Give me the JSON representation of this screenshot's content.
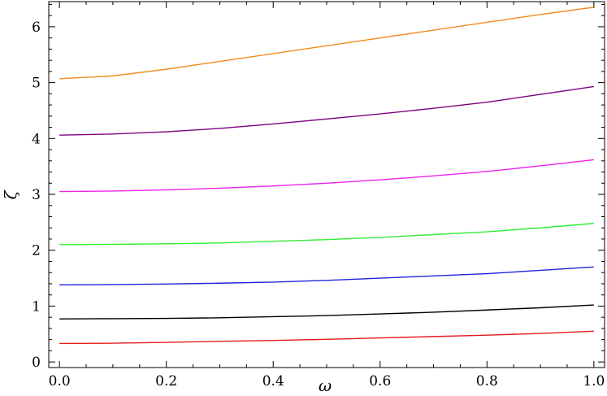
{
  "chart_data": {
    "type": "line",
    "xlabel": "ω",
    "ylabel": "ζ",
    "xlim": [
      -0.02,
      1.02
    ],
    "ylim": [
      -0.1,
      6.45
    ],
    "xticks": [
      0.0,
      0.2,
      0.4,
      0.6,
      0.8,
      1.0
    ],
    "xtick_labels": [
      "0.0",
      "0.2",
      "0.4",
      "0.6",
      "0.8",
      "1.0"
    ],
    "yticks": [
      0,
      1,
      2,
      3,
      4,
      5,
      6
    ],
    "ytick_labels": [
      "0",
      "1",
      "2",
      "3",
      "4",
      "5",
      "6"
    ],
    "grid": false,
    "x": [
      0.0,
      0.1,
      0.2,
      0.3,
      0.4,
      0.5,
      0.6,
      0.7,
      0.8,
      0.9,
      1.0
    ],
    "series": [
      {
        "color": "#e31a1c",
        "values": [
          0.33,
          0.335,
          0.35,
          0.37,
          0.385,
          0.405,
          0.43,
          0.455,
          0.48,
          0.51,
          0.55
        ]
      },
      {
        "color": "#000000",
        "values": [
          0.77,
          0.775,
          0.78,
          0.79,
          0.81,
          0.83,
          0.86,
          0.89,
          0.93,
          0.97,
          1.02
        ]
      },
      {
        "color": "#2222dd",
        "values": [
          1.38,
          1.385,
          1.395,
          1.41,
          1.43,
          1.46,
          1.5,
          1.54,
          1.58,
          1.64,
          1.7
        ]
      },
      {
        "color": "#33ee33",
        "values": [
          2.1,
          2.105,
          2.115,
          2.13,
          2.16,
          2.19,
          2.23,
          2.28,
          2.33,
          2.4,
          2.48
        ]
      },
      {
        "color": "#ee22ee",
        "values": [
          3.05,
          3.06,
          3.08,
          3.11,
          3.15,
          3.2,
          3.26,
          3.33,
          3.41,
          3.51,
          3.62
        ]
      },
      {
        "color": "#800080",
        "values": [
          4.06,
          4.08,
          4.12,
          4.18,
          4.26,
          4.35,
          4.44,
          4.54,
          4.65,
          4.79,
          4.93
        ]
      },
      {
        "color": "#f28c1e",
        "values": [
          5.07,
          5.12,
          5.24,
          5.38,
          5.52,
          5.66,
          5.8,
          5.94,
          6.08,
          6.22,
          6.35
        ]
      }
    ]
  }
}
